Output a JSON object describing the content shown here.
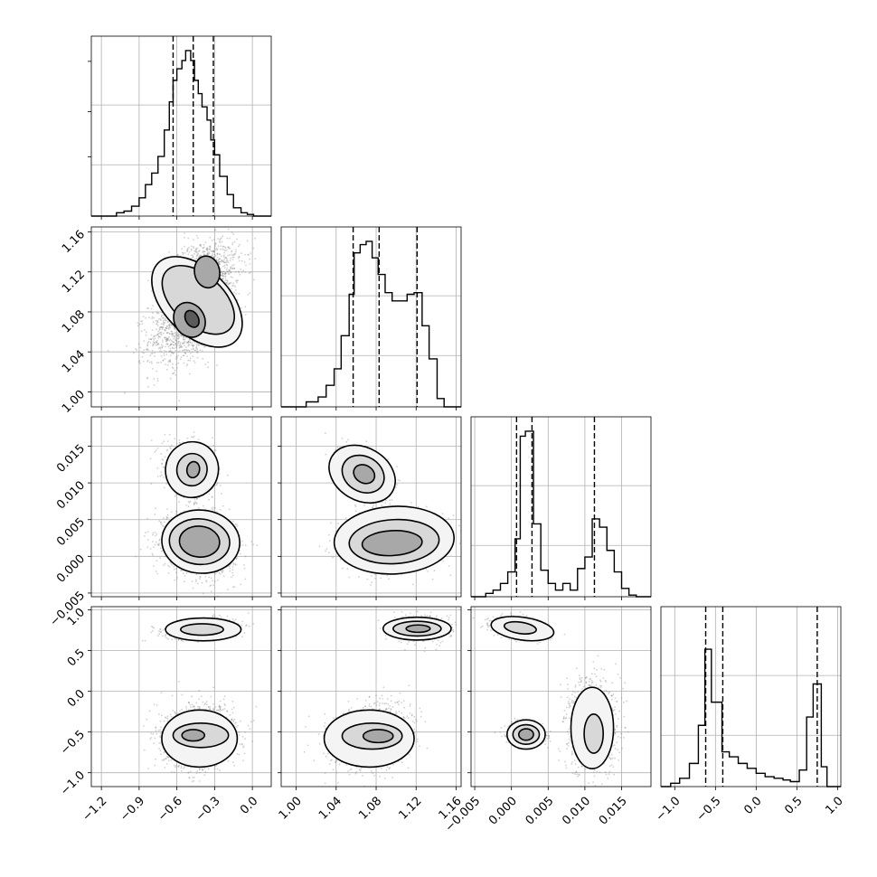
{
  "chart_data": {
    "type": "corner",
    "grid": true,
    "params": [
      {
        "range": [
          -1.28,
          0.15
        ],
        "ticks": [
          -1.2,
          -0.9,
          -0.6,
          -0.3,
          0.0
        ],
        "tick_labels": [
          "−1.2",
          "−0.9",
          "−0.6",
          "−0.3",
          "0.0"
        ],
        "quantiles": [
          -0.63,
          -0.47,
          -0.31
        ],
        "hist": {
          "edges": [
            -1.28,
            -1.2,
            -1.14,
            -1.08,
            -1.02,
            -0.96,
            -0.9,
            -0.85,
            -0.8,
            -0.75,
            -0.7,
            -0.66,
            -0.63,
            -0.6,
            -0.56,
            -0.53,
            -0.49,
            -0.46,
            -0.43,
            -0.4,
            -0.36,
            -0.33,
            -0.3,
            -0.26,
            -0.2,
            -0.15,
            -0.09,
            -0.04,
            0.01,
            0.15
          ],
          "counts": [
            0,
            0,
            0,
            0.02,
            0.03,
            0.06,
            0.11,
            0.19,
            0.26,
            0.36,
            0.52,
            0.69,
            0.82,
            0.89,
            0.94,
            1.0,
            0.94,
            0.82,
            0.74,
            0.66,
            0.58,
            0.46,
            0.37,
            0.24,
            0.13,
            0.05,
            0.02,
            0.01,
            0
          ]
        }
      },
      {
        "range": [
          0.985,
          1.165
        ],
        "ticks": [
          1.0,
          1.04,
          1.08,
          1.12,
          1.16
        ],
        "tick_labels": [
          "1.00",
          "1.04",
          "1.08",
          "1.12",
          "1.16"
        ],
        "quantiles": [
          1.057,
          1.083,
          1.121
        ],
        "hist": {
          "edges": [
            0.985,
            1.01,
            1.022,
            1.03,
            1.038,
            1.045,
            1.053,
            1.058,
            1.064,
            1.07,
            1.076,
            1.082,
            1.089,
            1.096,
            1.103,
            1.111,
            1.118,
            1.126,
            1.133,
            1.141,
            1.148,
            1.165
          ],
          "counts": [
            0,
            0.03,
            0.06,
            0.13,
            0.23,
            0.43,
            0.68,
            0.93,
            0.98,
            1.0,
            0.9,
            0.8,
            0.69,
            0.64,
            0.64,
            0.68,
            0.69,
            0.49,
            0.29,
            0.05,
            0
          ]
        }
      },
      {
        "range": [
          -0.0055,
          0.019
        ],
        "ticks": [
          -0.005,
          0.0,
          0.005,
          0.01,
          0.015
        ],
        "tick_labels": [
          "−0.005",
          "0.000",
          "0.005",
          "0.010",
          "0.015"
        ],
        "quantiles": [
          0.0007,
          0.0028,
          0.0113
        ],
        "hist": {
          "edges": [
            -0.0055,
            -0.0035,
            -0.0025,
            -0.0015,
            -0.0005,
            0.0005,
            0.0012,
            0.0019,
            0.003,
            0.004,
            0.005,
            0.006,
            0.007,
            0.008,
            0.009,
            0.01,
            0.011,
            0.012,
            0.013,
            0.014,
            0.015,
            0.016,
            0.017,
            0.019
          ],
          "counts": [
            0,
            0.02,
            0.04,
            0.08,
            0.15,
            0.35,
            0.97,
            1.0,
            0.44,
            0.16,
            0.08,
            0.04,
            0.08,
            0.04,
            0.17,
            0.24,
            0.47,
            0.42,
            0.28,
            0.15,
            0.05,
            0.01,
            0
          ]
        }
      },
      {
        "range": [
          -1.17,
          1.04
        ],
        "ticks": [
          -1.0,
          -0.5,
          0.0,
          0.5,
          1.0
        ],
        "tick_labels": [
          "−1.0",
          "−0.5",
          "0.0",
          "0.5",
          "1.0"
        ],
        "quantiles": [
          -0.62,
          -0.41,
          0.75
        ],
        "hist": {
          "edges": [
            -1.17,
            -1.05,
            -0.94,
            -0.82,
            -0.71,
            -0.63,
            -0.55,
            -0.42,
            -0.33,
            -0.22,
            -0.11,
            0.0,
            0.11,
            0.22,
            0.33,
            0.42,
            0.53,
            0.62,
            0.7,
            0.8,
            0.87,
            1.04
          ],
          "counts": [
            0,
            0.02,
            0.05,
            0.14,
            0.37,
            0.83,
            0.51,
            0.21,
            0.18,
            0.14,
            0.11,
            0.08,
            0.06,
            0.05,
            0.04,
            0.03,
            0.1,
            0.42,
            0.62,
            0.12,
            0
          ]
        }
      }
    ],
    "pairs": [
      {
        "row": 1,
        "col": 0,
        "blobs": [
          {
            "cx": -0.5,
            "cy": 1.072,
            "sx": 0.16,
            "sy": 0.022,
            "rho": 0.45,
            "n": 1400
          },
          {
            "cx": -0.38,
            "cy": 1.12,
            "sx": 0.14,
            "sy": 0.017,
            "rho": 0.3,
            "n": 1000
          }
        ],
        "contours": [
          {
            "cx": -0.44,
            "cy": 1.09,
            "rx": 0.26,
            "ry": 0.055,
            "rot": 45,
            "level": 1
          },
          {
            "cx": -0.43,
            "cy": 1.092,
            "rx": 0.2,
            "ry": 0.043,
            "rot": 48,
            "level": 2
          },
          {
            "cx": -0.36,
            "cy": 1.12,
            "rx": 0.1,
            "ry": 0.016,
            "rot": 10,
            "level": 3
          },
          {
            "cx": -0.5,
            "cy": 1.072,
            "rx": 0.12,
            "ry": 0.018,
            "rot": 30,
            "level": 3
          },
          {
            "cx": -0.48,
            "cy": 1.073,
            "rx": 0.05,
            "ry": 0.009,
            "rot": 30,
            "level": 4
          }
        ]
      },
      {
        "row": 2,
        "col": 0,
        "blobs": [
          {
            "cx": -0.5,
            "cy": 0.0118,
            "sx": 0.1,
            "sy": 0.0018,
            "rho": -0.2,
            "n": 700
          },
          {
            "cx": -0.42,
            "cy": 0.0018,
            "sx": 0.14,
            "sy": 0.002,
            "rho": -0.15,
            "n": 1700
          }
        ],
        "contours": [
          {
            "cx": -0.48,
            "cy": 0.0118,
            "rx": 0.21,
            "ry": 0.0038,
            "rot": -10,
            "level": 1
          },
          {
            "cx": -0.48,
            "cy": 0.0118,
            "rx": 0.12,
            "ry": 0.0022,
            "rot": -10,
            "level": 2
          },
          {
            "cx": -0.47,
            "cy": 0.0118,
            "rx": 0.05,
            "ry": 0.0011,
            "rot": -10,
            "level": 3
          },
          {
            "cx": -0.41,
            "cy": 0.002,
            "rx": 0.31,
            "ry": 0.0043,
            "rot": -5,
            "level": 1
          },
          {
            "cx": -0.42,
            "cy": 0.002,
            "rx": 0.24,
            "ry": 0.0031,
            "rot": -5,
            "level": 2
          },
          {
            "cx": -0.42,
            "cy": 0.002,
            "rx": 0.16,
            "ry": 0.0021,
            "rot": -5,
            "level": 3
          }
        ]
      },
      {
        "row": 2,
        "col": 1,
        "blobs": [
          {
            "cx": 1.068,
            "cy": 0.0112,
            "sx": 0.012,
            "sy": 0.0017,
            "rho": -0.4,
            "n": 700
          },
          {
            "cx": 1.095,
            "cy": 0.0018,
            "sx": 0.022,
            "sy": 0.0017,
            "rho": 0.1,
            "n": 1700
          }
        ],
        "contours": [
          {
            "cx": 1.066,
            "cy": 0.0112,
            "rx": 0.035,
            "ry": 0.0036,
            "rot": -30,
            "level": 1
          },
          {
            "cx": 1.067,
            "cy": 0.0112,
            "rx": 0.022,
            "ry": 0.0024,
            "rot": -30,
            "level": 2
          },
          {
            "cx": 1.068,
            "cy": 0.0112,
            "rx": 0.011,
            "ry": 0.0012,
            "rot": -30,
            "level": 3
          },
          {
            "cx": 1.098,
            "cy": 0.0022,
            "rx": 0.06,
            "ry": 0.0046,
            "rot": 3,
            "level": 1
          },
          {
            "cx": 1.098,
            "cy": 0.002,
            "rx": 0.045,
            "ry": 0.003,
            "rot": 3,
            "level": 2
          },
          {
            "cx": 1.096,
            "cy": 0.0018,
            "rx": 0.03,
            "ry": 0.0017,
            "rot": 3,
            "level": 3
          }
        ]
      },
      {
        "row": 3,
        "col": 0,
        "blobs": [
          {
            "cx": -0.42,
            "cy": 0.77,
            "sx": 0.14,
            "sy": 0.06,
            "rho": 0.3,
            "n": 900
          },
          {
            "cx": -0.42,
            "cy": -0.55,
            "sx": 0.14,
            "sy": 0.18,
            "rho": 0.1,
            "n": 1700
          }
        ],
        "contours": [
          {
            "cx": -0.39,
            "cy": 0.76,
            "rx": 0.3,
            "ry": 0.14,
            "rot": 0,
            "level": 1
          },
          {
            "cx": -0.4,
            "cy": 0.76,
            "rx": 0.17,
            "ry": 0.07,
            "rot": 0,
            "level": 2
          },
          {
            "cx": -0.42,
            "cy": -0.58,
            "rx": 0.3,
            "ry": 0.35,
            "rot": 0,
            "level": 1
          },
          {
            "cx": -0.41,
            "cy": -0.54,
            "rx": 0.22,
            "ry": 0.15,
            "rot": 0,
            "level": 2
          },
          {
            "cx": -0.47,
            "cy": -0.54,
            "rx": 0.09,
            "ry": 0.07,
            "rot": 0,
            "level": 3
          }
        ]
      },
      {
        "row": 3,
        "col": 1,
        "blobs": [
          {
            "cx": 1.123,
            "cy": 0.77,
            "sx": 0.013,
            "sy": 0.07,
            "rho": 0.0,
            "n": 900
          },
          {
            "cx": 1.075,
            "cy": -0.55,
            "sx": 0.018,
            "sy": 0.18,
            "rho": 0.2,
            "n": 1700
          }
        ],
        "contours": [
          {
            "cx": 1.121,
            "cy": 0.77,
            "rx": 0.034,
            "ry": 0.14,
            "rot": 0,
            "level": 1
          },
          {
            "cx": 1.121,
            "cy": 0.77,
            "rx": 0.024,
            "ry": 0.09,
            "rot": 0,
            "level": 2
          },
          {
            "cx": 1.122,
            "cy": 0.77,
            "rx": 0.012,
            "ry": 0.045,
            "rot": 0,
            "level": 3
          },
          {
            "cx": 1.073,
            "cy": -0.58,
            "rx": 0.045,
            "ry": 0.35,
            "rot": 0,
            "level": 1
          },
          {
            "cx": 1.076,
            "cy": -0.55,
            "rx": 0.03,
            "ry": 0.16,
            "rot": 0,
            "level": 2
          },
          {
            "cx": 1.082,
            "cy": -0.55,
            "rx": 0.015,
            "ry": 0.08,
            "rot": 0,
            "level": 3
          }
        ]
      },
      {
        "row": 3,
        "col": 2,
        "blobs": [
          {
            "cx": 0.0012,
            "cy": 0.78,
            "sx": 0.0018,
            "sy": 0.06,
            "rho": -0.3,
            "n": 900
          },
          {
            "cx": 0.002,
            "cy": -0.53,
            "sx": 0.0012,
            "sy": 0.06,
            "rho": 0,
            "n": 900
          },
          {
            "cx": 0.011,
            "cy": -0.4,
            "sx": 0.0017,
            "sy": 0.3,
            "rho": 0,
            "n": 900
          }
        ],
        "contours": [
          {
            "cx": 0.0015,
            "cy": 0.77,
            "rx": 0.0043,
            "ry": 0.14,
            "rot": -8,
            "level": 1
          },
          {
            "cx": 0.0012,
            "cy": 0.78,
            "rx": 0.0022,
            "ry": 0.07,
            "rot": -8,
            "level": 2
          },
          {
            "cx": 0.002,
            "cy": -0.53,
            "rx": 0.0026,
            "ry": 0.18,
            "rot": 0,
            "level": 1
          },
          {
            "cx": 0.002,
            "cy": -0.53,
            "rx": 0.0018,
            "ry": 0.12,
            "rot": 0,
            "level": 2
          },
          {
            "cx": 0.002,
            "cy": -0.53,
            "rx": 0.001,
            "ry": 0.07,
            "rot": 0,
            "level": 3
          },
          {
            "cx": 0.011,
            "cy": -0.45,
            "rx": 0.0029,
            "ry": 0.5,
            "rot": 0,
            "level": 1
          },
          {
            "cx": 0.0112,
            "cy": -0.52,
            "rx": 0.0013,
            "ry": 0.24,
            "rot": 0,
            "level": 2
          }
        ]
      }
    ]
  }
}
